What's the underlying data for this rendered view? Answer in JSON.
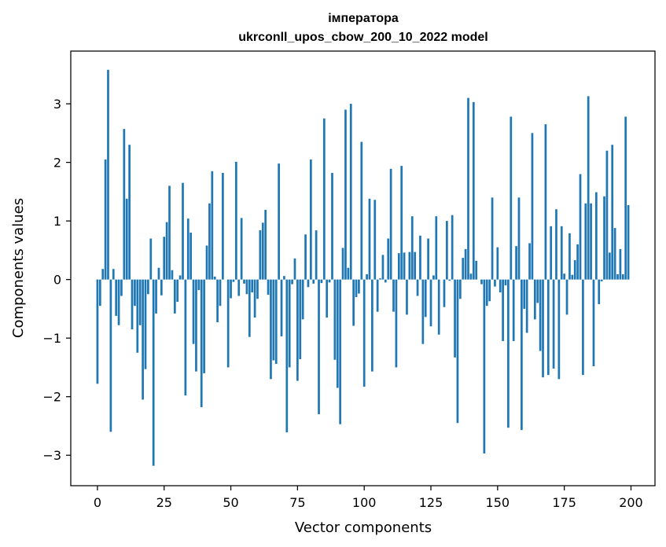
{
  "chart_data": {
    "type": "bar",
    "title": "імператора",
    "subtitle": "ukrconll_upos_cbow_200_10_2022 model",
    "xlabel": "Vector components",
    "ylabel": "Components values",
    "xlim": [
      -10,
      209
    ],
    "ylim": [
      -3.52,
      3.9
    ],
    "xticks": [
      0,
      25,
      50,
      75,
      100,
      125,
      150,
      175,
      200
    ],
    "yticks": [
      -3,
      -2,
      -1,
      0,
      1,
      2,
      3
    ],
    "xtick_labels": [
      "0",
      "25",
      "50",
      "75",
      "100",
      "125",
      "150",
      "175",
      "200"
    ],
    "ytick_labels": [
      "−3",
      "−2",
      "−1",
      "0",
      "1",
      "2",
      "3"
    ],
    "bar_color": "#1f77b4",
    "grid": false,
    "x": [
      0,
      1,
      2,
      3,
      4,
      5,
      6,
      7,
      8,
      9,
      10,
      11,
      12,
      13,
      14,
      15,
      16,
      17,
      18,
      19,
      20,
      21,
      22,
      23,
      24,
      25,
      26,
      27,
      28,
      29,
      30,
      31,
      32,
      33,
      34,
      35,
      36,
      37,
      38,
      39,
      40,
      41,
      42,
      43,
      44,
      45,
      46,
      47,
      48,
      49,
      50,
      51,
      52,
      53,
      54,
      55,
      56,
      57,
      58,
      59,
      60,
      61,
      62,
      63,
      64,
      65,
      66,
      67,
      68,
      69,
      70,
      71,
      72,
      73,
      74,
      75,
      76,
      77,
      78,
      79,
      80,
      81,
      82,
      83,
      84,
      85,
      86,
      87,
      88,
      89,
      90,
      91,
      92,
      93,
      94,
      95,
      96,
      97,
      98,
      99,
      100,
      101,
      102,
      103,
      104,
      105,
      106,
      107,
      108,
      109,
      110,
      111,
      112,
      113,
      114,
      115,
      116,
      117,
      118,
      119,
      120,
      121,
      122,
      123,
      124,
      125,
      126,
      127,
      128,
      129,
      130,
      131,
      132,
      133,
      134,
      135,
      136,
      137,
      138,
      139,
      140,
      141,
      142,
      143,
      144,
      145,
      146,
      147,
      148,
      149,
      150,
      151,
      152,
      153,
      154,
      155,
      156,
      157,
      158,
      159,
      160,
      161,
      162,
      163,
      164,
      165,
      166,
      167,
      168,
      169,
      170,
      171,
      172,
      173,
      174,
      175,
      176,
      177,
      178,
      179,
      180,
      181,
      182,
      183,
      184,
      185,
      186,
      187,
      188,
      189,
      190,
      191,
      192,
      193,
      194,
      195,
      196,
      197,
      198,
      199
    ],
    "values": [
      -1.78,
      -0.45,
      0.18,
      2.05,
      3.58,
      -2.6,
      0.18,
      -0.62,
      -0.78,
      -0.28,
      2.57,
      1.38,
      2.3,
      -0.85,
      -0.45,
      -1.25,
      -0.78,
      -2.05,
      -1.53,
      -0.25,
      0.7,
      -3.18,
      -0.58,
      0.2,
      -0.27,
      0.73,
      0.98,
      1.6,
      0.16,
      -0.58,
      -0.38,
      0.07,
      1.65,
      -1.98,
      1.04,
      0.8,
      -1.1,
      -1.57,
      -0.18,
      -2.18,
      -1.6,
      0.58,
      1.3,
      1.85,
      0.05,
      -0.73,
      -0.45,
      1.82,
      0.0,
      -1.5,
      -0.32,
      -0.04,
      2.01,
      -0.28,
      1.05,
      -0.07,
      -0.25,
      -0.98,
      -0.22,
      -0.65,
      -0.33,
      0.84,
      0.97,
      1.19,
      -0.26,
      -1.7,
      -1.38,
      -1.44,
      1.98,
      -0.97,
      0.06,
      -2.61,
      -1.5,
      -0.08,
      0.36,
      -1.73,
      -1.36,
      -0.68,
      0.77,
      -0.13,
      2.05,
      -0.07,
      0.84,
      -2.3,
      -0.06,
      2.75,
      -0.65,
      -0.05,
      1.82,
      -1.37,
      -1.85,
      -2.47,
      0.54,
      2.9,
      0.2,
      3.0,
      -0.79,
      -0.3,
      -0.24,
      2.35,
      -1.83,
      0.09,
      1.38,
      -1.57,
      1.36,
      -0.55,
      0.02,
      0.42,
      -0.05,
      0.7,
      1.89,
      -0.55,
      -1.5,
      0.45,
      1.94,
      0.46,
      -0.6,
      0.47,
      1.08,
      0.47,
      -0.28,
      0.75,
      -1.1,
      -0.64,
      0.7,
      -0.8,
      0.07,
      1.08,
      -0.94,
      0.0,
      -0.47,
      1.0,
      -0.02,
      1.1,
      -1.33,
      -2.45,
      -0.33,
      0.37,
      0.52,
      3.1,
      0.1,
      3.03,
      0.32,
      0.0,
      -0.08,
      -2.97,
      -0.45,
      -0.37,
      1.4,
      -0.12,
      0.55,
      -0.22,
      -1.05,
      -0.1,
      -2.53,
      2.78,
      -1.05,
      0.57,
      1.4,
      -2.57,
      -0.5,
      -0.91,
      0.62,
      2.5,
      -0.68,
      -0.4,
      -1.22,
      -1.67,
      2.65,
      -1.63,
      0.91,
      -1.52,
      1.2,
      -1.7,
      0.91,
      0.1,
      -0.6,
      0.79,
      0.08,
      0.33,
      0.6,
      1.8,
      -1.63,
      1.3,
      3.13,
      1.3,
      -1.48,
      1.49,
      -0.42,
      -0.03,
      1.42,
      2.2,
      0.46,
      2.3,
      0.88,
      0.09,
      0.52,
      0.09,
      2.78,
      1.27
    ]
  }
}
